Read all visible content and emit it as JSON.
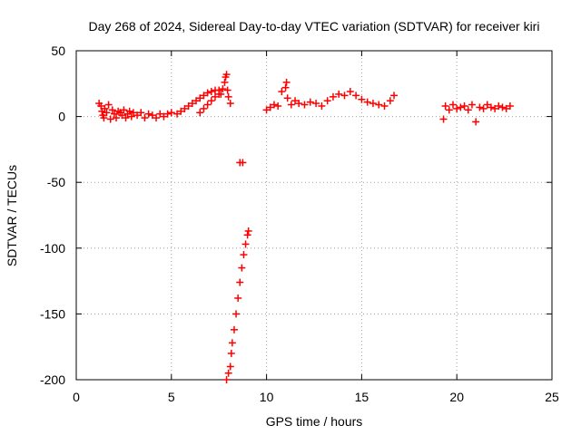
{
  "chart_data": {
    "type": "scatter",
    "title": "Day 268 of 2024, Sidereal Day-to-day VTEC variation (SDTVAR) for receiver kiri",
    "xlabel": "GPS time / hours",
    "ylabel": "SDTVAR / TECUs",
    "xlim": [
      0,
      25
    ],
    "ylim": [
      -200,
      50
    ],
    "xticks": [
      0,
      5,
      10,
      15,
      20,
      25
    ],
    "yticks": [
      -200,
      -150,
      -100,
      -50,
      0,
      50
    ],
    "grid": true,
    "marker": "+",
    "point_color": "#ff0000",
    "series": [
      {
        "name": "",
        "points": [
          [
            1.2,
            10
          ],
          [
            1.3,
            8
          ],
          [
            1.35,
            4
          ],
          [
            1.4,
            1
          ],
          [
            1.45,
            -1
          ],
          [
            1.5,
            6
          ],
          [
            1.6,
            3
          ],
          [
            1.7,
            9
          ],
          [
            1.8,
            -2
          ],
          [
            1.9,
            5
          ],
          [
            2.0,
            2
          ],
          [
            2.1,
            -1
          ],
          [
            2.2,
            4
          ],
          [
            2.3,
            3
          ],
          [
            2.4,
            1
          ],
          [
            2.5,
            5
          ],
          [
            2.6,
            -1
          ],
          [
            2.7,
            2
          ],
          [
            2.8,
            4
          ],
          [
            2.9,
            0
          ],
          [
            3.0,
            3
          ],
          [
            3.2,
            1
          ],
          [
            3.4,
            3
          ],
          [
            3.6,
            -1
          ],
          [
            3.8,
            2
          ],
          [
            4.0,
            1
          ],
          [
            4.2,
            -1
          ],
          [
            4.4,
            2
          ],
          [
            4.6,
            0
          ],
          [
            4.8,
            2
          ],
          [
            5.0,
            3
          ],
          [
            5.3,
            2
          ],
          [
            5.5,
            4
          ],
          [
            5.7,
            6
          ],
          [
            5.9,
            8
          ],
          [
            6.1,
            10
          ],
          [
            6.3,
            12
          ],
          [
            6.5,
            14
          ],
          [
            6.7,
            16
          ],
          [
            6.9,
            18
          ],
          [
            7.1,
            19
          ],
          [
            7.3,
            20
          ],
          [
            7.5,
            20
          ],
          [
            7.7,
            21
          ],
          [
            7.8,
            26
          ],
          [
            7.85,
            30
          ],
          [
            7.9,
            32
          ],
          [
            7.95,
            20
          ],
          [
            8.0,
            15
          ],
          [
            8.1,
            10
          ],
          [
            6.5,
            3
          ],
          [
            6.7,
            6
          ],
          [
            6.9,
            9
          ],
          [
            7.1,
            12
          ],
          [
            7.3,
            15
          ],
          [
            7.5,
            17
          ],
          [
            7.6,
            17
          ],
          [
            8.6,
            -35
          ],
          [
            8.75,
            -35
          ],
          [
            7.9,
            -200
          ],
          [
            8.0,
            -195
          ],
          [
            8.1,
            -190
          ],
          [
            8.15,
            -180
          ],
          [
            8.2,
            -172
          ],
          [
            8.3,
            -162
          ],
          [
            8.4,
            -150
          ],
          [
            8.5,
            -138
          ],
          [
            8.6,
            -126
          ],
          [
            8.7,
            -115
          ],
          [
            8.8,
            -105
          ],
          [
            8.9,
            -97
          ],
          [
            9.0,
            -90
          ],
          [
            9.05,
            -87
          ],
          [
            10.0,
            5
          ],
          [
            10.2,
            7
          ],
          [
            10.4,
            9
          ],
          [
            10.6,
            8
          ],
          [
            10.8,
            19
          ],
          [
            11.0,
            22
          ],
          [
            11.05,
            26
          ],
          [
            11.1,
            14
          ],
          [
            11.3,
            9
          ],
          [
            11.5,
            12
          ],
          [
            11.7,
            10
          ],
          [
            12.0,
            9
          ],
          [
            12.3,
            11
          ],
          [
            12.6,
            10
          ],
          [
            12.9,
            8
          ],
          [
            13.2,
            12
          ],
          [
            13.5,
            15
          ],
          [
            13.8,
            17
          ],
          [
            14.1,
            16
          ],
          [
            14.4,
            19
          ],
          [
            14.7,
            16
          ],
          [
            15.0,
            13
          ],
          [
            15.3,
            11
          ],
          [
            15.6,
            10
          ],
          [
            15.9,
            9
          ],
          [
            16.2,
            8
          ],
          [
            16.5,
            12
          ],
          [
            16.7,
            16
          ],
          [
            19.3,
            -2
          ],
          [
            19.4,
            8
          ],
          [
            19.6,
            5
          ],
          [
            19.8,
            9
          ],
          [
            20.0,
            6
          ],
          [
            20.2,
            7
          ],
          [
            20.4,
            8
          ],
          [
            20.6,
            5
          ],
          [
            20.8,
            9
          ],
          [
            21.0,
            -4
          ],
          [
            21.2,
            7
          ],
          [
            21.4,
            6
          ],
          [
            21.6,
            9
          ],
          [
            21.8,
            7
          ],
          [
            22.0,
            6
          ],
          [
            22.2,
            8
          ],
          [
            22.4,
            7
          ],
          [
            22.6,
            6
          ],
          [
            22.8,
            8
          ]
        ]
      }
    ]
  }
}
